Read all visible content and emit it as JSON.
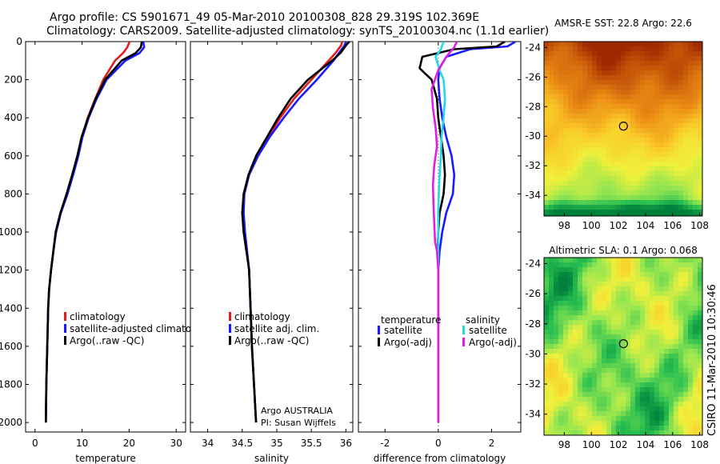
{
  "header": {
    "title_line1": "Argo profile: CS 5901671_49 05-Mar-2010 20100308_828 29.319S 102.369E",
    "title_line2": "Climatology: CARS2009. Satellite-adjusted climatology: synTS_20100304.nc (1.1d earlier)"
  },
  "colors": {
    "climatology": "#e02020",
    "satellite": "#1a1aff",
    "argo": "#000000",
    "satellite_salinity": "#22d8e8",
    "argo_salinity_diff": "#e020e0"
  },
  "chart_data": [
    {
      "type": "line",
      "panel": "temperature",
      "xlabel": "temperature",
      "ylabel": "",
      "xlim": [
        -2,
        32
      ],
      "ylim": [
        2050,
        0
      ],
      "y_inverted": true,
      "xticks": [
        0,
        10,
        20,
        30
      ],
      "yticks": [
        0,
        200,
        400,
        600,
        800,
        1000,
        1200,
        1400,
        1600,
        1800,
        2000
      ],
      "legend_placement": "lower-right",
      "series": [
        {
          "name": "climatology",
          "color_key": "climatology",
          "x": [
            20.1,
            19.6,
            18.7,
            17.0,
            14.5,
            12.8,
            11.2,
            10.0,
            9.1,
            8.0,
            6.8,
            5.4,
            4.4,
            3.9,
            3.4,
            3.0,
            2.8,
            2.6,
            2.4,
            2.3
          ],
          "y": [
            0,
            30,
            60,
            100,
            200,
            300,
            400,
            500,
            600,
            700,
            800,
            900,
            1000,
            1100,
            1200,
            1300,
            1400,
            1600,
            1800,
            2000
          ]
        },
        {
          "name": "satellite-adjusted climatology",
          "color_key": "satellite",
          "x": [
            23.0,
            23.2,
            22.2,
            19.2,
            15.2,
            13.1,
            11.4,
            10.1,
            9.2,
            8.1,
            6.9,
            5.5,
            4.5,
            3.9,
            3.4,
            3.0,
            2.8,
            2.6,
            2.4,
            2.3
          ],
          "y": [
            0,
            30,
            60,
            100,
            200,
            300,
            400,
            500,
            600,
            700,
            800,
            900,
            1000,
            1100,
            1200,
            1300,
            1400,
            1600,
            1800,
            2000
          ]
        },
        {
          "name": "Argo(..raw -QC)",
          "color_key": "argo",
          "x": [
            22.7,
            22.5,
            21.4,
            18.4,
            14.9,
            12.9,
            11.3,
            9.9,
            9.0,
            7.9,
            6.7,
            5.4,
            4.4,
            3.9,
            3.4,
            3.0,
            2.8,
            2.6,
            2.4,
            2.3
          ],
          "y": [
            0,
            30,
            60,
            100,
            200,
            300,
            400,
            500,
            600,
            700,
            800,
            900,
            1000,
            1100,
            1200,
            1300,
            1400,
            1600,
            1800,
            2000
          ]
        }
      ]
    },
    {
      "type": "line",
      "panel": "salinity",
      "xlabel": "salinity",
      "ylabel": "",
      "xlim": [
        33.75,
        36.1
      ],
      "ylim": [
        2050,
        0
      ],
      "y_inverted": true,
      "xticks": [
        34,
        34.5,
        35,
        35.5,
        36
      ],
      "legend_placement": "lower-right",
      "annotation_line1": "Argo AUSTRALIA",
      "annotation_line2": "PI: Susan Wijffels",
      "series": [
        {
          "name": "climatology",
          "color_key": "climatology",
          "x": [
            35.95,
            35.93,
            35.85,
            35.75,
            35.5,
            35.25,
            35.05,
            34.88,
            34.72,
            34.6,
            34.53,
            34.52,
            34.54,
            34.57,
            34.6,
            34.62,
            34.64,
            34.67,
            34.7
          ],
          "y": [
            0,
            20,
            60,
            100,
            200,
            300,
            400,
            500,
            600,
            700,
            800,
            900,
            1000,
            1100,
            1200,
            1400,
            1600,
            1800,
            2000
          ]
        },
        {
          "name": "satellite adj. clim.",
          "color_key": "satellite",
          "x": [
            36.0,
            35.98,
            35.9,
            35.82,
            35.58,
            35.32,
            35.1,
            34.9,
            34.73,
            34.6,
            34.53,
            34.52,
            34.54,
            34.57,
            34.6,
            34.62,
            34.64,
            34.67,
            34.7
          ],
          "y": [
            0,
            20,
            60,
            100,
            200,
            300,
            400,
            500,
            600,
            700,
            800,
            900,
            1000,
            1100,
            1200,
            1400,
            1600,
            1800,
            2000
          ]
        },
        {
          "name": "Argo(..raw -QC)",
          "color_key": "argo",
          "x": [
            36.05,
            36.0,
            35.92,
            35.8,
            35.45,
            35.2,
            35.02,
            34.86,
            34.7,
            34.59,
            34.52,
            34.5,
            34.52,
            34.56,
            34.6,
            34.62,
            34.64,
            34.67,
            34.7
          ],
          "y": [
            0,
            20,
            60,
            100,
            200,
            300,
            400,
            500,
            600,
            700,
            800,
            900,
            1000,
            1100,
            1200,
            1400,
            1600,
            1800,
            2000
          ]
        }
      ]
    },
    {
      "type": "line",
      "panel": "difference",
      "xlabel": "difference from climatology",
      "ylabel": "",
      "xlim": [
        -3,
        3.1
      ],
      "ylim": [
        2050,
        0
      ],
      "y_inverted": true,
      "xticks": [
        -2,
        0,
        2
      ],
      "reference_line_x": 0,
      "legend_placement": "lower",
      "legend_groups": [
        "temperature",
        "salinity"
      ],
      "series": [
        {
          "name": "satellite",
          "group": "temperature",
          "color_key": "satellite",
          "x": [
            2.9,
            2.6,
            1.2,
            0.3,
            0.05,
            0.0,
            0.05,
            0.15,
            0.3,
            0.5,
            0.6,
            0.55,
            0.3,
            0.15,
            0.05,
            0.0,
            0.0,
            0.0,
            0.0,
            0.0
          ],
          "y": [
            0,
            25,
            40,
            80,
            140,
            200,
            300,
            400,
            500,
            600,
            700,
            800,
            900,
            1000,
            1100,
            1200,
            1400,
            1600,
            1800,
            2000
          ]
        },
        {
          "name": "Argo(-adj)",
          "group": "temperature",
          "color_key": "argo",
          "x": [
            2.5,
            2.2,
            0.6,
            -0.6,
            -0.7,
            -0.25,
            -0.05,
            0.0,
            0.1,
            0.2,
            0.25,
            0.2,
            0.05,
            0.0,
            -0.02,
            0.0,
            0.0,
            0.0,
            0.0,
            0.0
          ],
          "y": [
            0,
            25,
            40,
            80,
            140,
            200,
            300,
            400,
            500,
            600,
            700,
            800,
            900,
            1000,
            1100,
            1200,
            1400,
            1600,
            1800,
            2000
          ]
        },
        {
          "name": "satellite",
          "group": "salinity",
          "color_key": "satellite_salinity",
          "x": [
            0.2,
            0.1,
            -0.1,
            0.05,
            0.2,
            0.25,
            0.2,
            0.12,
            0.1,
            0.05,
            0.02,
            0.0,
            0.0,
            0.0,
            0.0,
            0.0,
            0.0,
            0.0
          ],
          "y": [
            0,
            40,
            80,
            150,
            200,
            300,
            400,
            500,
            600,
            700,
            800,
            900,
            1000,
            1100,
            1200,
            1400,
            1600,
            2000
          ]
        },
        {
          "name": "Argo(-adj)",
          "group": "salinity",
          "color_key": "argo_salinity_diff",
          "x": [
            0.7,
            0.6,
            0.3,
            0.0,
            -0.25,
            -0.2,
            -0.1,
            -0.05,
            -0.15,
            -0.2,
            -0.18,
            -0.15,
            -0.12,
            -0.05,
            0.0,
            0.0,
            0.0,
            0.0
          ],
          "y": [
            0,
            30,
            80,
            150,
            250,
            350,
            450,
            550,
            650,
            750,
            850,
            950,
            1050,
            1100,
            1200,
            1400,
            1600,
            2000
          ]
        }
      ]
    },
    {
      "type": "heatmap",
      "panel": "sst-map",
      "title": "AMSR-E SST: 22.8 Argo: 22.6",
      "xlim": [
        96.5,
        108.2
      ],
      "ylim": [
        -35.4,
        -23.6
      ],
      "xticks": [
        98,
        100,
        102,
        104,
        106,
        108
      ],
      "yticks": [
        -24,
        -26,
        -28,
        -30,
        -32,
        -34
      ],
      "marker": {
        "lon": 102.369,
        "lat": -29.319
      }
    },
    {
      "type": "heatmap",
      "panel": "sla-map",
      "title": "Altimetric SLA: 0.1 Argo: 0.068",
      "xlim": [
        96.5,
        108.2
      ],
      "ylim": [
        -35.4,
        -23.6
      ],
      "xticks": [
        98,
        100,
        102,
        104,
        106,
        108
      ],
      "yticks": [
        -24,
        -26,
        -28,
        -30,
        -32,
        -34
      ],
      "marker": {
        "lon": 102.369,
        "lat": -29.319
      }
    }
  ],
  "footer": {
    "credit": "CSIRO 11-Mar-2010 10:30:46"
  }
}
